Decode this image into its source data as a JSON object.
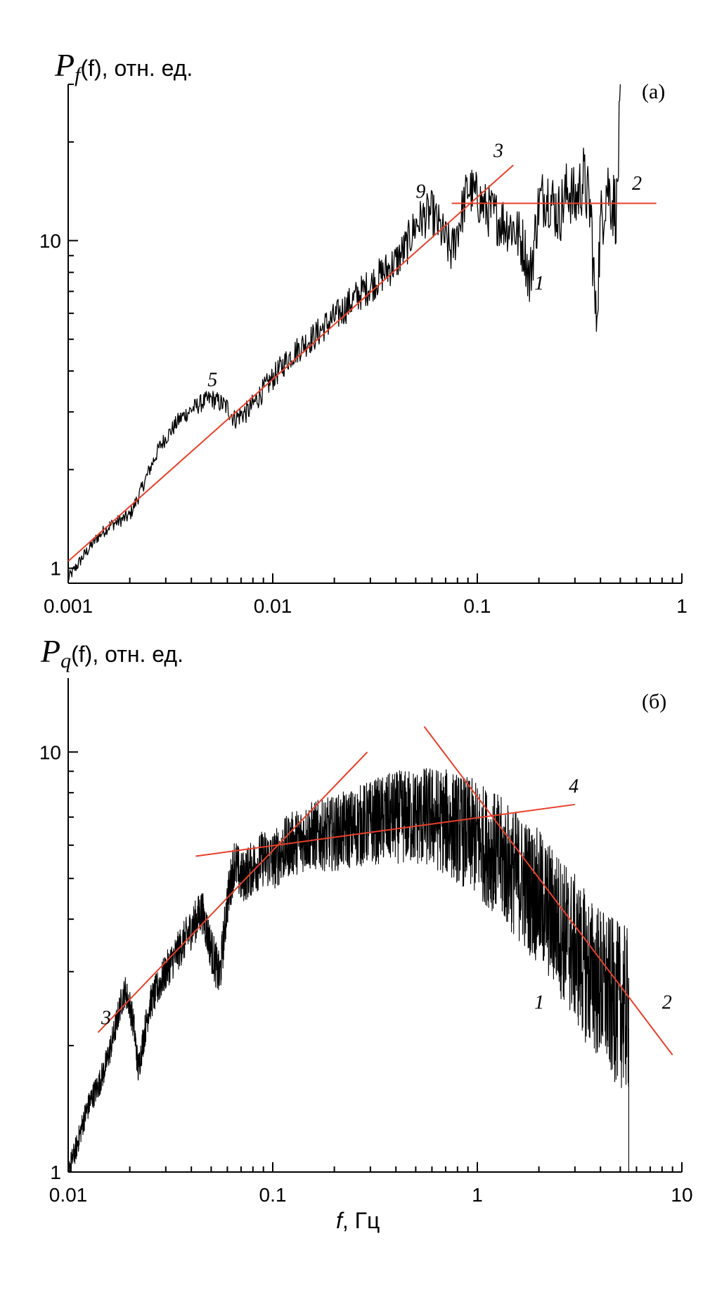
{
  "chart_data": [
    {
      "type": "line",
      "panel_label": "(a)",
      "ylabel": {
        "symbol": "P",
        "subscript": "f",
        "arg": "(f)",
        "unit": ", отн. ед."
      },
      "xlabel": "",
      "x_scale": "log",
      "y_scale": "log",
      "xlim": [
        0.001,
        1
      ],
      "ylim": [
        0.9,
        30
      ],
      "x_ticks": [
        {
          "value": 0.001,
          "label": "0.001"
        },
        {
          "value": 0.01,
          "label": "0.01"
        },
        {
          "value": 0.1,
          "label": "0.1"
        },
        {
          "value": 1,
          "label": "1"
        }
      ],
      "y_ticks": [
        {
          "value": 1,
          "label": "1"
        },
        {
          "value": 10,
          "label": "10"
        }
      ],
      "series": [
        {
          "name": "1",
          "color": "#000000",
          "style": "noisy",
          "points": [
            [
              0.001,
              0.93
            ],
            [
              0.0012,
              1.1
            ],
            [
              0.0014,
              1.25
            ],
            [
              0.0016,
              1.35
            ],
            [
              0.0018,
              1.4
            ],
            [
              0.002,
              1.45
            ],
            [
              0.0022,
              1.65
            ],
            [
              0.0025,
              2.0
            ],
            [
              0.0028,
              2.35
            ],
            [
              0.003,
              2.5
            ],
            [
              0.0035,
              2.85
            ],
            [
              0.004,
              3.05
            ],
            [
              0.0045,
              3.2
            ],
            [
              0.005,
              3.3
            ],
            [
              0.0055,
              3.2
            ],
            [
              0.006,
              3.1
            ],
            [
              0.0065,
              2.85
            ],
            [
              0.007,
              2.95
            ],
            [
              0.0075,
              3.0
            ],
            [
              0.008,
              3.15
            ],
            [
              0.009,
              3.5
            ],
            [
              0.01,
              3.8
            ],
            [
              0.011,
              4.1
            ],
            [
              0.012,
              4.4
            ],
            [
              0.014,
              4.8
            ],
            [
              0.016,
              5.1
            ],
            [
              0.018,
              5.5
            ],
            [
              0.02,
              5.8
            ],
            [
              0.023,
              6.3
            ],
            [
              0.026,
              6.8
            ],
            [
              0.03,
              7.3
            ],
            [
              0.035,
              8.0
            ],
            [
              0.04,
              8.6
            ],
            [
              0.045,
              9.6
            ],
            [
              0.05,
              11.2
            ],
            [
              0.055,
              11.8
            ],
            [
              0.06,
              12.2
            ],
            [
              0.065,
              11.0
            ],
            [
              0.07,
              10.0
            ],
            [
              0.075,
              9.2
            ],
            [
              0.08,
              10.8
            ],
            [
              0.085,
              12.5
            ],
            [
              0.09,
              14.5
            ],
            [
              0.1,
              13.5
            ],
            [
              0.11,
              12.5
            ],
            [
              0.12,
              12.0
            ],
            [
              0.13,
              11.5
            ],
            [
              0.15,
              11.0
            ],
            [
              0.17,
              9.5
            ],
            [
              0.18,
              7.5
            ],
            [
              0.2,
              13.0
            ],
            [
              0.22,
              14.0
            ],
            [
              0.25,
              12.0
            ],
            [
              0.28,
              14.5
            ],
            [
              0.3,
              13.0
            ],
            [
              0.33,
              15.5
            ],
            [
              0.36,
              12.0
            ],
            [
              0.38,
              5.5
            ],
            [
              0.4,
              11.0
            ],
            [
              0.43,
              15.0
            ],
            [
              0.46,
              13.0
            ],
            [
              0.48,
              12.5
            ],
            [
              0.5,
              26.0
            ]
          ]
        },
        {
          "name": "2",
          "color": "#e8402a",
          "style": "fit",
          "points": [
            [
              0.075,
              13.0
            ],
            [
              0.75,
              13.0
            ]
          ]
        },
        {
          "name": "3",
          "color": "#e8402a",
          "style": "fit",
          "points": [
            [
              0.001,
              1.05
            ],
            [
              0.15,
              17.0
            ]
          ]
        }
      ],
      "annotations": [
        {
          "text": "1",
          "x": 0.19,
          "y": 7.1
        },
        {
          "text": "2",
          "x": 0.57,
          "y": 14.3
        },
        {
          "text": "3",
          "x": 0.12,
          "y": 18.0
        },
        {
          "text": "5",
          "x": 0.0048,
          "y": 3.6
        },
        {
          "text": "9",
          "x": 0.05,
          "y": 13.5
        }
      ]
    },
    {
      "type": "line",
      "panel_label": "(б)",
      "ylabel": {
        "symbol": "P",
        "subscript": "q",
        "arg": "(f)",
        "unit": ", отн. ед."
      },
      "xlabel": {
        "symbol": "f",
        "unit": ", Гц"
      },
      "x_scale": "log",
      "y_scale": "log",
      "xlim": [
        0.01,
        10
      ],
      "ylim": [
        1,
        15
      ],
      "x_ticks": [
        {
          "value": 0.01,
          "label": "0.01"
        },
        {
          "value": 0.1,
          "label": "0.1"
        },
        {
          "value": 1,
          "label": "1"
        },
        {
          "value": 10,
          "label": "10"
        }
      ],
      "y_ticks": [
        {
          "value": 1,
          "label": "1"
        },
        {
          "value": 10,
          "label": "10"
        }
      ],
      "series": [
        {
          "name": "1",
          "color": "#000000",
          "style": "noisy",
          "points": [
            [
              0.01,
              1.0
            ],
            [
              0.011,
              1.15
            ],
            [
              0.012,
              1.35
            ],
            [
              0.013,
              1.5
            ],
            [
              0.014,
              1.6
            ],
            [
              0.015,
              1.75
            ],
            [
              0.016,
              1.95
            ],
            [
              0.017,
              2.2
            ],
            [
              0.018,
              2.5
            ],
            [
              0.019,
              2.7
            ],
            [
              0.02,
              2.5
            ],
            [
              0.021,
              2.2
            ],
            [
              0.022,
              1.75
            ],
            [
              0.023,
              2.0
            ],
            [
              0.025,
              2.5
            ],
            [
              0.028,
              2.8
            ],
            [
              0.03,
              3.0
            ],
            [
              0.035,
              3.4
            ],
            [
              0.04,
              3.8
            ],
            [
              0.045,
              4.2
            ],
            [
              0.05,
              3.4
            ],
            [
              0.055,
              2.9
            ],
            [
              0.06,
              4.4
            ],
            [
              0.065,
              5.5
            ],
            [
              0.07,
              5.0
            ],
            [
              0.08,
              5.3
            ],
            [
              0.09,
              5.6
            ],
            [
              0.1,
              5.5
            ],
            [
              0.12,
              6.0
            ],
            [
              0.15,
              6.3
            ],
            [
              0.2,
              6.4
            ],
            [
              0.25,
              6.6
            ],
            [
              0.3,
              6.8
            ],
            [
              0.4,
              7.0
            ],
            [
              0.5,
              7.0
            ],
            [
              0.6,
              7.0
            ],
            [
              0.7,
              6.8
            ],
            [
              0.8,
              6.6
            ],
            [
              1.0,
              6.2
            ],
            [
              1.2,
              5.8
            ],
            [
              1.5,
              5.2
            ],
            [
              2.0,
              4.5
            ],
            [
              2.5,
              3.9
            ],
            [
              3.0,
              3.4
            ],
            [
              3.5,
              3.0
            ],
            [
              4.0,
              2.8
            ],
            [
              4.5,
              2.6
            ],
            [
              5.0,
              2.5
            ],
            [
              5.5,
              2.4
            ]
          ]
        },
        {
          "name": "2",
          "color": "#e8402a",
          "style": "fit",
          "points": [
            [
              0.55,
              11.5
            ],
            [
              9.0,
              1.9
            ]
          ]
        },
        {
          "name": "3",
          "color": "#e8402a",
          "style": "fit",
          "points": [
            [
              0.014,
              2.15
            ],
            [
              0.29,
              10.0
            ]
          ]
        },
        {
          "name": "4",
          "color": "#e8402a",
          "style": "fit",
          "points": [
            [
              0.042,
              5.65
            ],
            [
              3.0,
              7.5
            ]
          ]
        }
      ],
      "annotations": [
        {
          "text": "1",
          "x": 1.9,
          "y": 2.45
        },
        {
          "text": "2",
          "x": 8.0,
          "y": 2.45
        },
        {
          "text": "3",
          "x": 0.0145,
          "y": 2.25
        },
        {
          "text": "4",
          "x": 2.8,
          "y": 8.0
        }
      ]
    }
  ]
}
